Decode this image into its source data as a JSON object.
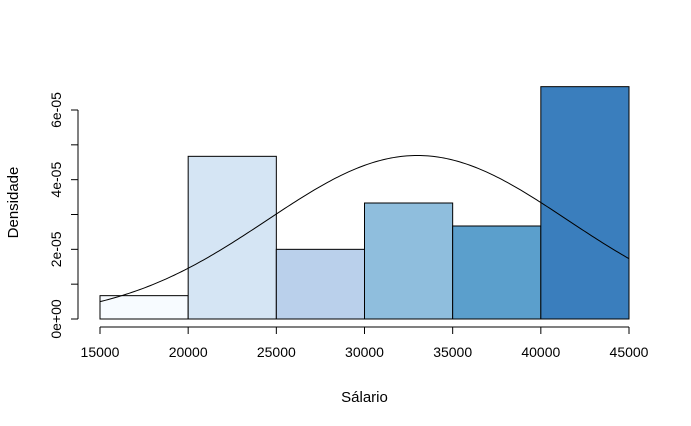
{
  "chart_data": {
    "type": "bar",
    "title": "",
    "xlabel": "Sálario",
    "ylabel": "Densidade",
    "xlim": [
      15000,
      45000
    ],
    "ylim": [
      0,
      6e-05
    ],
    "bins": [
      {
        "start": 15000,
        "end": 20000,
        "density": 6.7e-06,
        "color": "#F7FBFF"
      },
      {
        "start": 20000,
        "end": 25000,
        "density": 4.67e-05,
        "color": "#D5E5F4"
      },
      {
        "start": 25000,
        "end": 30000,
        "density": 2e-05,
        "color": "#BAD0EB"
      },
      {
        "start": 30000,
        "end": 35000,
        "density": 3.33e-05,
        "color": "#8FBEDD"
      },
      {
        "start": 35000,
        "end": 40000,
        "density": 2.67e-05,
        "color": "#5B9FCC"
      },
      {
        "start": 40000,
        "end": 45000,
        "density": 6.67e-05,
        "color": "#3A7EBD"
      }
    ],
    "x_ticks": [
      {
        "value": 15000,
        "label": "15000"
      },
      {
        "value": 20000,
        "label": "20000"
      },
      {
        "value": 25000,
        "label": "25000"
      },
      {
        "value": 30000,
        "label": "30000"
      },
      {
        "value": 35000,
        "label": "35000"
      },
      {
        "value": 40000,
        "label": "40000"
      },
      {
        "value": 45000,
        "label": "45000"
      }
    ],
    "y_ticks": [
      {
        "value": 0,
        "label": "0e+00"
      },
      {
        "value": 1e-05,
        "label": ""
      },
      {
        "value": 2e-05,
        "label": "2e-05"
      },
      {
        "value": 3e-05,
        "label": ""
      },
      {
        "value": 4e-05,
        "label": "4e-05"
      },
      {
        "value": 5e-05,
        "label": ""
      },
      {
        "value": 6e-05,
        "label": "6e-05"
      }
    ],
    "density_curve": {
      "type": "normal",
      "mean": 33000,
      "sd": 8500,
      "line_color": "#000000"
    },
    "grid": false
  }
}
